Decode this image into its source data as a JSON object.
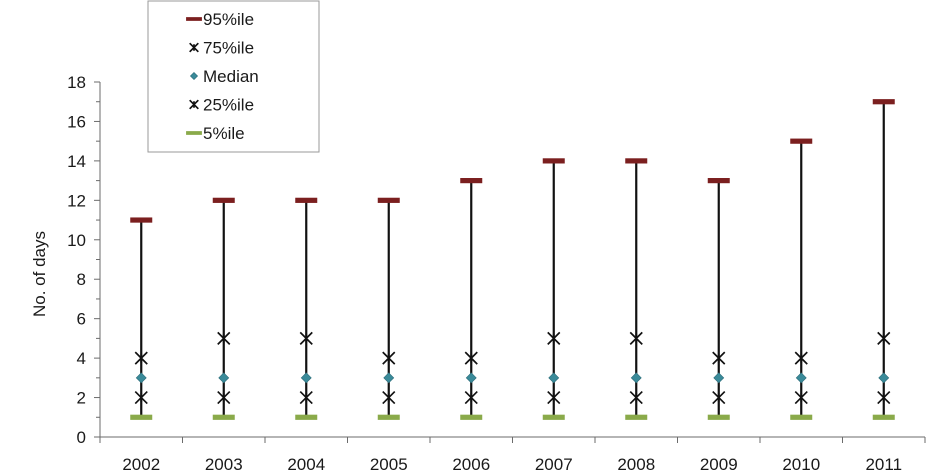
{
  "chart_data": {
    "type": "scatter",
    "ylabel": "No. of days",
    "ylim": [
      0,
      18
    ],
    "ytick_step": 2,
    "categories": [
      "2002",
      "2003",
      "2004",
      "2005",
      "2006",
      "2007",
      "2008",
      "2009",
      "2010",
      "2011"
    ],
    "legend_position": "top-left",
    "series": [
      {
        "key": "p95",
        "name": "95%ile",
        "marker": "dash",
        "color": "#7b1f1f",
        "values": [
          11,
          12,
          12,
          12,
          13,
          14,
          14,
          13,
          15,
          17
        ]
      },
      {
        "key": "p75",
        "name": "75%ile",
        "marker": "asterisk",
        "color": "#111111",
        "values": [
          4,
          5,
          5,
          4,
          4,
          5,
          5,
          4,
          4,
          5
        ]
      },
      {
        "key": "median",
        "name": "Median",
        "marker": "diamond",
        "color": "#3a8a99",
        "values": [
          3,
          3,
          3,
          3,
          3,
          3,
          3,
          3,
          3,
          3
        ]
      },
      {
        "key": "p25",
        "name": "25%ile",
        "marker": "asterisk",
        "color": "#111111",
        "values": [
          2,
          2,
          2,
          2,
          2,
          2,
          2,
          2,
          2,
          2
        ]
      },
      {
        "key": "p5",
        "name": "5%ile",
        "marker": "dash",
        "color": "#8aaa4a",
        "values": [
          1,
          1,
          1,
          1,
          1,
          1,
          1,
          1,
          1,
          1
        ]
      }
    ],
    "range_line": {
      "from": "p5",
      "to": "p95",
      "color": "#111111"
    }
  }
}
